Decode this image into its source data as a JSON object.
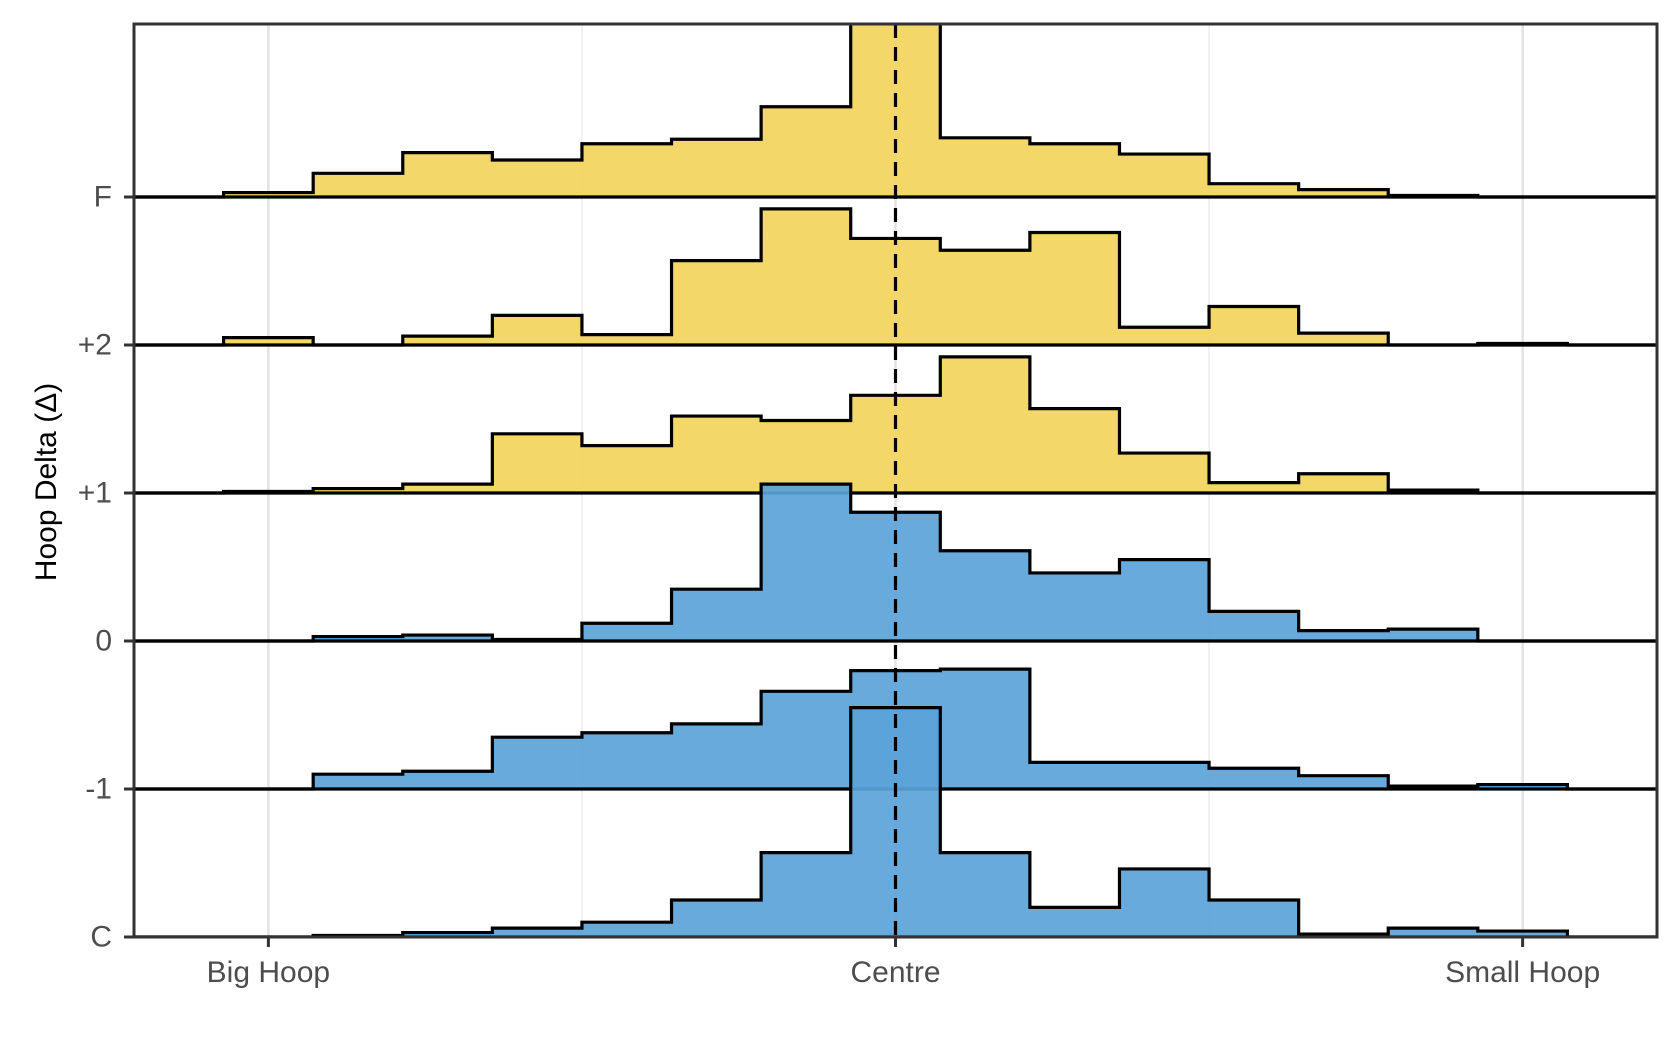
{
  "chart_data": {
    "type": "area",
    "subtype": "step-ridgeline",
    "title": "",
    "xlabel": "",
    "ylabel": "Hoop Delta (Δ)",
    "x_ticks": [
      {
        "label": "Big Hoop",
        "value": -7
      },
      {
        "label": "Centre",
        "value": 0
      },
      {
        "label": "Small Hoop",
        "value": 7
      }
    ],
    "x_bins": [
      -8.5,
      -7.5,
      -6.5,
      -5.5,
      -4.5,
      -3.5,
      -2.5,
      -1.5,
      -0.5,
      0.5,
      1.5,
      2.5,
      3.5,
      4.5,
      5.5,
      6.5,
      7.5,
      8.5
    ],
    "xlim": [
      -8.5,
      8.5
    ],
    "reference_line": {
      "x": 0,
      "style": "dashed"
    },
    "grid": "vertical-major",
    "row_spacing": 1,
    "colors": {
      "positive": "#f2d45c",
      "negative": "#5aa3d8",
      "outline": "#000000"
    },
    "series": [
      {
        "name": "C",
        "baseline": 0,
        "fill": "#5aa3d8",
        "values": [
          0.0,
          0.0,
          0.01,
          0.03,
          0.06,
          0.1,
          0.25,
          0.57,
          1.55,
          0.57,
          0.2,
          0.46,
          0.25,
          0.02,
          0.06,
          0.04,
          0.0
        ]
      },
      {
        "name": "-1",
        "baseline": 1,
        "fill": "#5aa3d8",
        "values": [
          0.0,
          0.0,
          0.1,
          0.12,
          0.35,
          0.38,
          0.44,
          0.66,
          0.8,
          0.81,
          0.18,
          0.18,
          0.14,
          0.09,
          0.02,
          0.03,
          0.0
        ]
      },
      {
        "name": "0",
        "baseline": 2,
        "fill": "#5aa3d8",
        "values": [
          0.0,
          0.0,
          0.03,
          0.04,
          0.01,
          0.12,
          0.35,
          1.06,
          0.87,
          0.61,
          0.46,
          0.55,
          0.2,
          0.07,
          0.08,
          0.0,
          0.0
        ]
      },
      {
        "name": "+1",
        "baseline": 3,
        "fill": "#f2d45c",
        "values": [
          0.0,
          0.01,
          0.03,
          0.06,
          0.4,
          0.32,
          0.52,
          0.49,
          0.66,
          0.92,
          0.57,
          0.27,
          0.07,
          0.13,
          0.02,
          0.0,
          0.0
        ]
      },
      {
        "name": "+2",
        "baseline": 4,
        "fill": "#f2d45c",
        "values": [
          0.0,
          0.05,
          0.0,
          0.06,
          0.2,
          0.07,
          0.57,
          0.92,
          0.72,
          0.64,
          0.76,
          0.12,
          0.26,
          0.08,
          0.0,
          0.01,
          0.0
        ]
      },
      {
        "name": "F",
        "baseline": 5,
        "fill": "#f2d45c",
        "values": [
          0.0,
          0.03,
          0.16,
          0.3,
          0.25,
          0.36,
          0.39,
          0.61,
          1.26,
          0.4,
          0.36,
          0.29,
          0.09,
          0.05,
          0.01,
          0.0,
          0.0
        ]
      }
    ]
  }
}
